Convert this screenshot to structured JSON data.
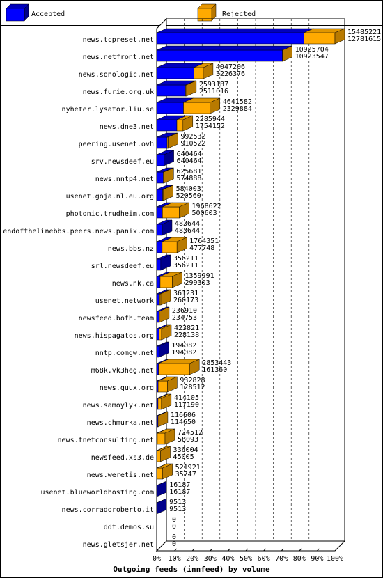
{
  "chart_data": {
    "type": "bar",
    "title": "Outgoing feeds (innfeed) by volume",
    "legend_position": "top",
    "series": [
      {
        "name": "Accepted",
        "color": "#0000ff"
      },
      {
        "name": "Rejected",
        "color": "#ffaa00"
      }
    ],
    "x_ticks": [
      "0%",
      "10%",
      "20%",
      "30%",
      "40%",
      "50%",
      "60%",
      "70%",
      "80%",
      "90%",
      "100%"
    ],
    "xlim": [
      0,
      100
    ],
    "grid": true,
    "rows": [
      {
        "host": "news.tcpreset.net",
        "total": "15485221",
        "accepted": "12781615",
        "total_v": 15485221,
        "acc_v": 12781615
      },
      {
        "host": "news.netfront.net",
        "total": "10925704",
        "accepted": "10923547",
        "total_v": 10925704,
        "acc_v": 10923547
      },
      {
        "host": "news.sonologic.net",
        "total": "4047206",
        "accepted": "3226376",
        "total_v": 4047206,
        "acc_v": 3226376
      },
      {
        "host": "news.furie.org.uk",
        "total": "2593187",
        "accepted": "2511016",
        "total_v": 2593187,
        "acc_v": 2511016
      },
      {
        "host": "nyheter.lysator.liu.se",
        "total": "4641582",
        "accepted": "2329884",
        "total_v": 4641582,
        "acc_v": 2329884
      },
      {
        "host": "news.dne3.net",
        "total": "2285944",
        "accepted": "1754152",
        "total_v": 2285944,
        "acc_v": 1754152
      },
      {
        "host": "peering.usenet.ovh",
        "total": "992532",
        "accepted": "910522",
        "total_v": 992532,
        "acc_v": 910522
      },
      {
        "host": "srv.newsdeef.eu",
        "total": "640464",
        "accepted": "640464",
        "total_v": 640464,
        "acc_v": 640464
      },
      {
        "host": "news.nntp4.net",
        "total": "625681",
        "accepted": "574888",
        "total_v": 625681,
        "acc_v": 574888
      },
      {
        "host": "usenet.goja.nl.eu.org",
        "total": "584003",
        "accepted": "520560",
        "total_v": 584003,
        "acc_v": 520560
      },
      {
        "host": "photonic.trudheim.com",
        "total": "1968622",
        "accepted": "500603",
        "total_v": 1968622,
        "acc_v": 500603
      },
      {
        "host": "endofthelinebbs.peers.news.panix.com",
        "total": "483644",
        "accepted": "483644",
        "total_v": 483644,
        "acc_v": 483644
      },
      {
        "host": "news.bbs.nz",
        "total": "1764351",
        "accepted": "477748",
        "total_v": 1764351,
        "acc_v": 477748
      },
      {
        "host": "srl.newsdeef.eu",
        "total": "356211",
        "accepted": "356211",
        "total_v": 356211,
        "acc_v": 356211
      },
      {
        "host": "news.nk.ca",
        "total": "1359991",
        "accepted": "299303",
        "total_v": 1359991,
        "acc_v": 299303
      },
      {
        "host": "usenet.network",
        "total": "361231",
        "accepted": "260173",
        "total_v": 361231,
        "acc_v": 260173
      },
      {
        "host": "newsfeed.bofh.team",
        "total": "236910",
        "accepted": "234753",
        "total_v": 236910,
        "acc_v": 234753
      },
      {
        "host": "news.hispagatos.org",
        "total": "423821",
        "accepted": "228138",
        "total_v": 423821,
        "acc_v": 228138
      },
      {
        "host": "nntp.comgw.net",
        "total": "194082",
        "accepted": "194082",
        "total_v": 194082,
        "acc_v": 194082
      },
      {
        "host": "m68k.vk3heg.net",
        "total": "2853443",
        "accepted": "161360",
        "total_v": 2853443,
        "acc_v": 161360
      },
      {
        "host": "news.quux.org",
        "total": "932828",
        "accepted": "128512",
        "total_v": 932828,
        "acc_v": 128512
      },
      {
        "host": "news.samoylyk.net",
        "total": "414105",
        "accepted": "117190",
        "total_v": 414105,
        "acc_v": 117190
      },
      {
        "host": "news.chmurka.net",
        "total": "116606",
        "accepted": "114650",
        "total_v": 116606,
        "acc_v": 114650
      },
      {
        "host": "news.tnetconsulting.net",
        "total": "724512",
        "accepted": "58093",
        "total_v": 724512,
        "acc_v": 58093
      },
      {
        "host": "newsfeed.xs3.de",
        "total": "336004",
        "accepted": "45005",
        "total_v": 336004,
        "acc_v": 45005
      },
      {
        "host": "news.weretis.net",
        "total": "521921",
        "accepted": "35747",
        "total_v": 521921,
        "acc_v": 35747
      },
      {
        "host": "usenet.blueworldhosting.com",
        "total": "16187",
        "accepted": "16187",
        "total_v": 16187,
        "acc_v": 16187
      },
      {
        "host": "news.corradoroberto.it",
        "total": "9513",
        "accepted": "9513",
        "total_v": 9513,
        "acc_v": 9513
      },
      {
        "host": "ddt.demos.su",
        "total": "0",
        "accepted": "0",
        "total_v": 0,
        "acc_v": 0
      },
      {
        "host": "news.gletsjer.net",
        "total": "0",
        "accepted": "0",
        "total_v": 0,
        "acc_v": 0
      }
    ]
  }
}
